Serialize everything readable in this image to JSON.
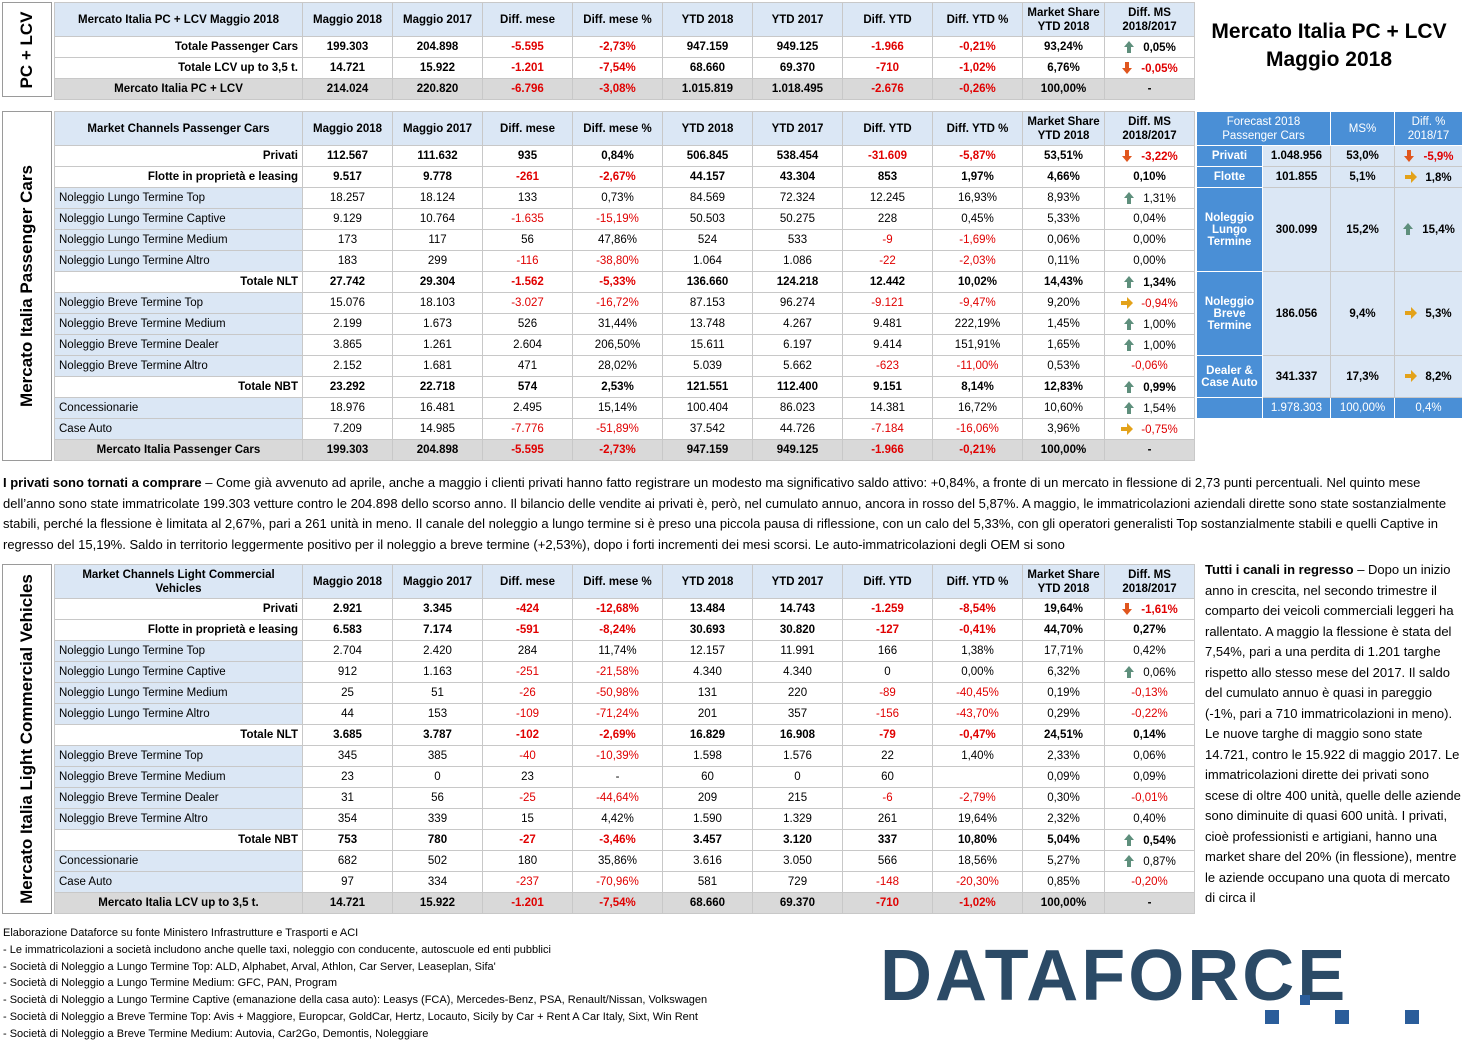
{
  "title": {
    "line1": "Mercato Italia PC + LCV",
    "line2": "Maggio 2018"
  },
  "side_labels": {
    "pc_lcv": "PC + LCV",
    "pc": "Mercato Italia Passenger Cars",
    "lcv": "Mercato Italia Light Commercial Vehicles"
  },
  "top": {
    "header": [
      "Mercato Italia PC + LCV Maggio 2018",
      "Maggio 2018",
      "Maggio 2017",
      "Diff. mese",
      "Diff. mese %",
      "YTD 2018",
      "YTD 2017",
      "Diff. YTD",
      "Diff. YTD %",
      "Market Share YTD 2018",
      "Diff. MS 2018/2017"
    ],
    "rows": [
      [
        "Totale Passenger Cars",
        "199.303",
        "204.898",
        "-5.595",
        "-2,73%",
        "947.159",
        "949.125",
        "-1.966",
        "-0,21%",
        "93,24%",
        "0,05%"
      ],
      [
        "Totale LCV up to 3,5 t.",
        "14.721",
        "15.922",
        "-1.201",
        "-7,54%",
        "68.660",
        "69.370",
        "-710",
        "-1,02%",
        "6,76%",
        "-0,05%"
      ],
      [
        "Mercato Italia PC + LCV",
        "214.024",
        "220.820",
        "-6.796",
        "-3,08%",
        "1.015.819",
        "1.018.495",
        "-2.676",
        "-0,26%",
        "100,00%",
        "-"
      ]
    ],
    "arrows": [
      "up",
      "dn",
      ""
    ]
  },
  "pc": {
    "header": [
      "Market Channels Passenger Cars",
      "Maggio 2018",
      "Maggio 2017",
      "Diff. mese",
      "Diff. mese %",
      "YTD 2018",
      "YTD 2017",
      "Diff. YTD",
      "Diff. YTD %",
      "Market Share YTD 2018",
      "Diff. MS 2018/2017"
    ],
    "rows": [
      [
        "Privati",
        "112.567",
        "111.632",
        "935",
        "0,84%",
        "506.845",
        "538.454",
        "-31.609",
        "-5,87%",
        "53,51%",
        "-3,22%"
      ],
      [
        "Flotte in proprietà e leasing",
        "9.517",
        "9.778",
        "-261",
        "-2,67%",
        "44.157",
        "43.304",
        "853",
        "1,97%",
        "4,66%",
        "0,10%"
      ],
      [
        "Noleggio Lungo Termine Top",
        "18.257",
        "18.124",
        "133",
        "0,73%",
        "84.569",
        "72.324",
        "12.245",
        "16,93%",
        "8,93%",
        "1,31%"
      ],
      [
        "Noleggio Lungo Termine Captive",
        "9.129",
        "10.764",
        "-1.635",
        "-15,19%",
        "50.503",
        "50.275",
        "228",
        "0,45%",
        "5,33%",
        "0,04%"
      ],
      [
        "Noleggio Lungo Termine Medium",
        "173",
        "117",
        "56",
        "47,86%",
        "524",
        "533",
        "-9",
        "-1,69%",
        "0,06%",
        "0,00%"
      ],
      [
        "Noleggio Lungo Termine Altro",
        "183",
        "299",
        "-116",
        "-38,80%",
        "1.064",
        "1.086",
        "-22",
        "-2,03%",
        "0,11%",
        "0,00%"
      ],
      [
        "Totale NLT",
        "27.742",
        "29.304",
        "-1.562",
        "-5,33%",
        "136.660",
        "124.218",
        "12.442",
        "10,02%",
        "14,43%",
        "1,34%"
      ],
      [
        "Noleggio Breve Termine Top",
        "15.076",
        "18.103",
        "-3.027",
        "-16,72%",
        "87.153",
        "96.274",
        "-9.121",
        "-9,47%",
        "9,20%",
        "-0,94%"
      ],
      [
        "Noleggio Breve Termine Medium",
        "2.199",
        "1.673",
        "526",
        "31,44%",
        "13.748",
        "4.267",
        "9.481",
        "222,19%",
        "1,45%",
        "1,00%"
      ],
      [
        "Noleggio Breve Termine Dealer",
        "3.865",
        "1.261",
        "2.604",
        "206,50%",
        "15.611",
        "6.197",
        "9.414",
        "151,91%",
        "1,65%",
        "1,00%"
      ],
      [
        "Noleggio Breve Termine Altro",
        "2.152",
        "1.681",
        "471",
        "28,02%",
        "5.039",
        "5.662",
        "-623",
        "-11,00%",
        "0,53%",
        "-0,06%"
      ],
      [
        "Totale NBT",
        "23.292",
        "22.718",
        "574",
        "2,53%",
        "121.551",
        "112.400",
        "9.151",
        "8,14%",
        "12,83%",
        "0,99%"
      ],
      [
        "Concessionarie",
        "18.976",
        "16.481",
        "2.495",
        "15,14%",
        "100.404",
        "86.023",
        "14.381",
        "16,72%",
        "10,60%",
        "1,54%"
      ],
      [
        "Case Auto",
        "7.209",
        "14.985",
        "-7.776",
        "-51,89%",
        "37.542",
        "44.726",
        "-7.184",
        "-16,06%",
        "3,96%",
        "-0,75%"
      ],
      [
        "Mercato Italia Passenger Cars",
        "199.303",
        "204.898",
        "-5.595",
        "-2,73%",
        "947.159",
        "949.125",
        "-1.966",
        "-0,21%",
        "100,00%",
        "-"
      ]
    ],
    "arrows": [
      "dn",
      "",
      "up",
      "",
      "",
      "",
      "up",
      "rt",
      "up",
      "up",
      "",
      "up",
      "up",
      "rt",
      ""
    ]
  },
  "forecast": {
    "header": [
      "Forecast 2018 Passenger Cars",
      "MS%",
      "Diff. % 2018/17"
    ],
    "rows": [
      {
        "label": "Privati",
        "value": "1.048.956",
        "ms": "53,0%",
        "diff": "-5,9%",
        "arrow": "dn"
      },
      {
        "label": "Flotte",
        "value": "101.855",
        "ms": "5,1%",
        "diff": "1,8%",
        "arrow": "rt"
      },
      {
        "label": "Noleggio Lungo Termine",
        "value": "300.099",
        "ms": "15,2%",
        "diff": "15,4%",
        "arrow": "up"
      },
      {
        "label": "Noleggio Breve Termine",
        "value": "186.056",
        "ms": "9,4%",
        "diff": "5,3%",
        "arrow": "rt"
      },
      {
        "label": "Dealer & Case Auto",
        "value": "341.337",
        "ms": "17,3%",
        "diff": "8,2%",
        "arrow": "rt"
      }
    ],
    "total": {
      "value": "1.978.303",
      "ms": "100,00%",
      "diff": "0,4%"
    }
  },
  "para1": {
    "bold": "I privati sono tornati a comprare",
    "text": " – Come già avvenuto ad aprile, anche a maggio i clienti privati hanno fatto registrare un modesto ma significativo saldo attivo: +0,84%, a fronte di un mercato in flessione di 2,73 punti percentuali. Nel quinto mese dell’anno sono state immatricolate 199.303 vetture contro le 204.898 dello scorso anno. Il bilancio delle vendite ai privati è, però, nel cumulato annuo, ancora in rosso del 5,87%. A maggio, le immatricolazioni aziendali dirette sono state sostanzialmente stabili, perché la flessione è limitata al 2,67%, pari a 261 unità in meno. Il canale del noleggio a lungo termine si è preso una piccola pausa di riflessione, con un calo del 5,33%, con gli operatori generalisti Top sostanzialmente stabili e quelli Captive in regresso del 15,19%. Saldo in territorio leggermente positivo per il noleggio a breve termine (+2,53%), dopo i forti incrementi dei mesi scorsi. Le auto-immatricolazioni degli OEM si sono"
  },
  "lcv": {
    "header": [
      "Market Channels Light Commercial Vehicles",
      "Maggio 2018",
      "Maggio 2017",
      "Diff. mese",
      "Diff. mese %",
      "YTD 2018",
      "YTD 2017",
      "Diff. YTD",
      "Diff. YTD %",
      "Market Share YTD 2018",
      "Diff. MS 2018/2017"
    ],
    "rows": [
      [
        "Privati",
        "2.921",
        "3.345",
        "-424",
        "-12,68%",
        "13.484",
        "14.743",
        "-1.259",
        "-8,54%",
        "19,64%",
        "-1,61%"
      ],
      [
        "Flotte in proprietà e leasing",
        "6.583",
        "7.174",
        "-591",
        "-8,24%",
        "30.693",
        "30.820",
        "-127",
        "-0,41%",
        "44,70%",
        "0,27%"
      ],
      [
        "Noleggio Lungo Termine Top",
        "2.704",
        "2.420",
        "284",
        "11,74%",
        "12.157",
        "11.991",
        "166",
        "1,38%",
        "17,71%",
        "0,42%"
      ],
      [
        "Noleggio Lungo Termine Captive",
        "912",
        "1.163",
        "-251",
        "-21,58%",
        "4.340",
        "4.340",
        "0",
        "0,00%",
        "6,32%",
        "0,06%"
      ],
      [
        "Noleggio Lungo Termine Medium",
        "25",
        "51",
        "-26",
        "-50,98%",
        "131",
        "220",
        "-89",
        "-40,45%",
        "0,19%",
        "-0,13%"
      ],
      [
        "Noleggio Lungo Termine Altro",
        "44",
        "153",
        "-109",
        "-71,24%",
        "201",
        "357",
        "-156",
        "-43,70%",
        "0,29%",
        "-0,22%"
      ],
      [
        "Totale NLT",
        "3.685",
        "3.787",
        "-102",
        "-2,69%",
        "16.829",
        "16.908",
        "-79",
        "-0,47%",
        "24,51%",
        "0,14%"
      ],
      [
        "Noleggio Breve Termine Top",
        "345",
        "385",
        "-40",
        "-10,39%",
        "1.598",
        "1.576",
        "22",
        "1,40%",
        "2,33%",
        "0,06%"
      ],
      [
        "Noleggio Breve Termine Medium",
        "23",
        "0",
        "23",
        "-",
        "60",
        "0",
        "60",
        "",
        "0,09%",
        "0,09%"
      ],
      [
        "Noleggio Breve Termine Dealer",
        "31",
        "56",
        "-25",
        "-44,64%",
        "209",
        "215",
        "-6",
        "-2,79%",
        "0,30%",
        "-0,01%"
      ],
      [
        "Noleggio Breve Termine Altro",
        "354",
        "339",
        "15",
        "4,42%",
        "1.590",
        "1.329",
        "261",
        "19,64%",
        "2,32%",
        "0,40%"
      ],
      [
        "Totale NBT",
        "753",
        "780",
        "-27",
        "-3,46%",
        "3.457",
        "3.120",
        "337",
        "10,80%",
        "5,04%",
        "0,54%"
      ],
      [
        "Concessionarie",
        "682",
        "502",
        "180",
        "35,86%",
        "3.616",
        "3.050",
        "566",
        "18,56%",
        "5,27%",
        "0,87%"
      ],
      [
        "Case Auto",
        "97",
        "334",
        "-237",
        "-70,96%",
        "581",
        "729",
        "-148",
        "-20,30%",
        "0,85%",
        "-0,20%"
      ],
      [
        "Mercato Italia LCV up to 3,5 t.",
        "14.721",
        "15.922",
        "-1.201",
        "-7,54%",
        "68.660",
        "69.370",
        "-710",
        "-1,02%",
        "100,00%",
        "-"
      ]
    ],
    "arrows": [
      "dn",
      "",
      "",
      "up",
      "",
      "",
      "",
      "",
      "",
      "",
      "",
      "up",
      "up",
      "",
      ""
    ]
  },
  "para2": {
    "bold": "Tutti i canali in regresso",
    "text": " – Dopo un inizio anno in crescita, nel secondo trimestre il comparto dei veicoli commerciali leggeri ha rallentato. A maggio la flessione è stata del 7,54%, pari a una perdita di 1.201 targhe rispetto allo stesso mese del 2017. Il saldo del cumulato annuo è quasi in pareggio (-1%, pari a 710 immatricolazioni in meno). Le nuove targhe di maggio sono state 14.721, contro le 15.922 di maggio 2017. Le immatricolazioni dirette dei privati sono scese di oltre 400 unità, quelle delle aziende sono diminuite di quasi 600 unità. I privati, cioè professionisti e artigiani, hanno una market share del 20% (in flessione), mentre le aziende occupano una quota di mercato di circa il"
  },
  "footnotes": [
    "Elaborazione Dataforce su fonte Ministero Infrastrutture e Trasporti e ACI",
    "- Le immatricolazioni a società includono anche quelle taxi, noleggio con conducente, autoscuole ed enti pubblici",
    "- Società di Noleggio a Lungo Termine Top: ALD, Alphabet, Arval, Athlon, Car Server, Leaseplan, Sifa'",
    "- Società di Noleggio a Lungo Termine Medium: GFC, PAN, Program",
    "- Società di Noleggio a Lungo Termine Captive (emanazione della casa auto): Leasys (FCA), Mercedes-Benz, PSA, Renault/Nissan, Volkswagen",
    "- Società di Noleggio a Breve Termine Top: Avis + Maggiore, Europcar, GoldCar, Hertz, Locauto, Sicily by Car + Rent A Car Italy, Sixt, Win Rent",
    "- Società di Noleggio a Breve Termine Medium: Autovia, Car2Go, Demontis, Noleggiare"
  ],
  "logo": {
    "part1": "DATA",
    "part2": "FORCE"
  },
  "colors": {
    "header_bg": "#dbe7f5",
    "forecast_bg": "#4a8fd6",
    "negative": "#e00000",
    "logo": "#2b4a66"
  }
}
